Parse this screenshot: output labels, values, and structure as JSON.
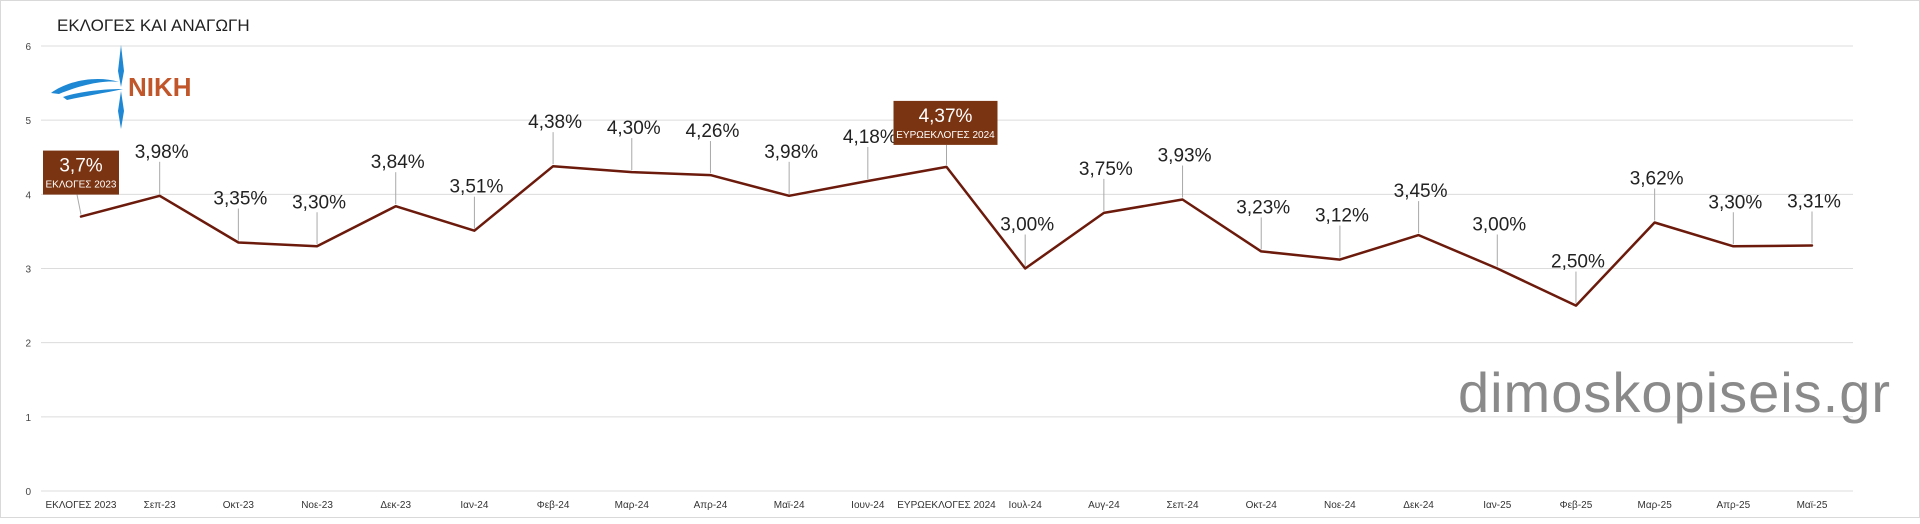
{
  "chart_data": {
    "type": "line",
    "title": "ΕΚΛΟΓΕΣ ΚΑΙ ΑΝΑΓΩΓΗ",
    "xlabel": "",
    "ylabel": "",
    "ylim": [
      0,
      6
    ],
    "y_ticks": [
      "0",
      "1",
      "2",
      "3",
      "4",
      "5",
      "6"
    ],
    "grid": true,
    "legend": "none",
    "line_color": "#6b1a0b",
    "categories": [
      "ΕΚΛΟΓΕΣ 2023",
      "Σεπ-23",
      "Οκτ-23",
      "Νοε-23",
      "Δεκ-23",
      "Ιαν-24",
      "Φεβ-24",
      "Μαρ-24",
      "Απρ-24",
      "Μαϊ-24",
      "Ιουν-24",
      "ΕΥΡΩΕΚΛΟΓΕΣ 2024",
      "Ιουλ-24",
      "Αυγ-24",
      "Σεπ-24",
      "Οκτ-24",
      "Νοε-24",
      "Δεκ-24",
      "Ιαν-25",
      "Φεβ-25",
      "Μαρ-25",
      "Απρ-25",
      "Μαϊ-25"
    ],
    "values": [
      3.7,
      3.98,
      3.35,
      3.3,
      3.84,
      3.51,
      4.38,
      4.3,
      4.26,
      3.98,
      4.18,
      4.37,
      3.0,
      3.75,
      3.93,
      3.23,
      3.12,
      3.45,
      3.0,
      2.5,
      3.62,
      3.3,
      3.31
    ],
    "labels": [
      "3,7%",
      "3,98%",
      "3,35%",
      "3,30%",
      "3,84%",
      "3,51%",
      "4,38%",
      "4,30%",
      "4,26%",
      "3,98%",
      "4,18%",
      "4,37%",
      "3,00%",
      "3,75%",
      "3,93%",
      "3,23%",
      "3,12%",
      "3,45%",
      "3,00%",
      "2,50%",
      "3,62%",
      "3,30%",
      "3,31%"
    ],
    "annotations": [
      {
        "index": 0,
        "value_text": "3,7%",
        "text": "ΕΚΛΟΓΕΣ 2023",
        "color": "#7a3412"
      },
      {
        "index": 11,
        "value_text": "4,37%",
        "text": "ΕΥΡΩΕΚΛΟΓΕΣ 2024",
        "color": "#7a3412"
      }
    ]
  },
  "logo": {
    "text": "ΝΙΚΗ",
    "color": "#c0562a",
    "accent_color": "#1e88d4"
  },
  "watermark": {
    "text": "dimoskopiseis.gr",
    "color": "#8a8a8a"
  }
}
